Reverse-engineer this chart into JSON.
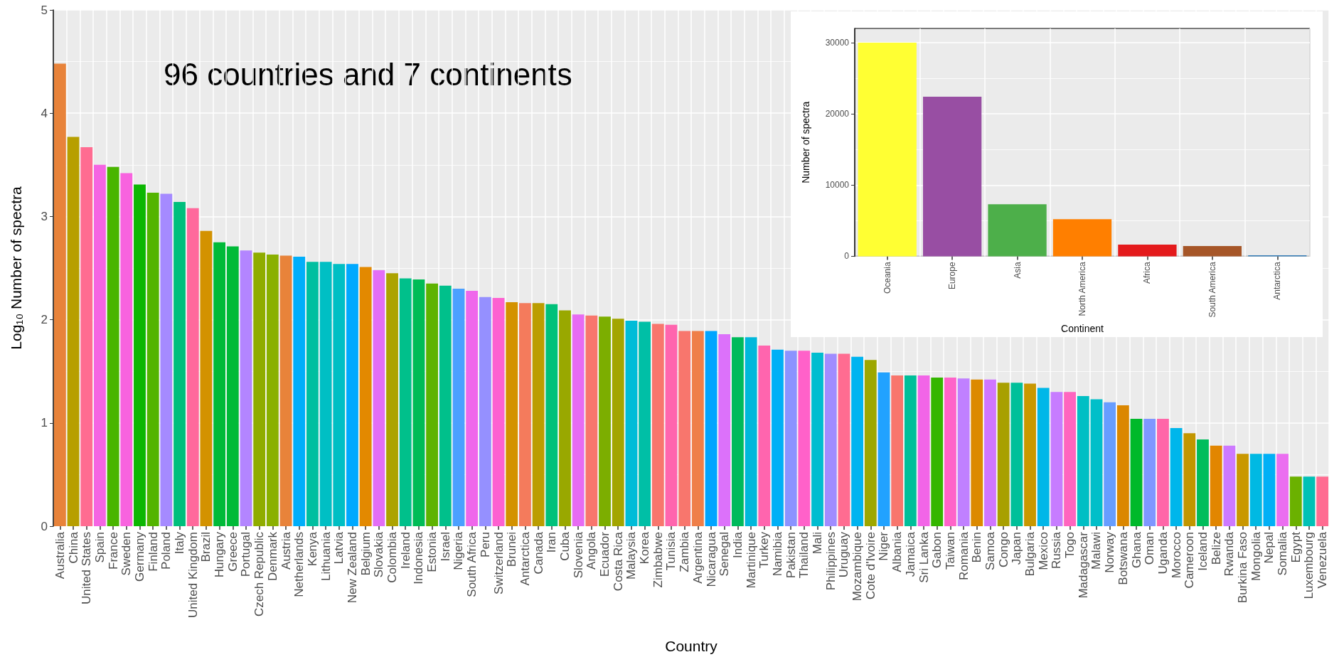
{
  "chart_data": [
    {
      "type": "bar",
      "xlabel": "Country",
      "ylabel": "Log₁₀ Number of spectra",
      "annotations": [
        "96 countries and 7 continents"
      ],
      "categories": [
        "Australia",
        "China",
        "United States",
        "Spain",
        "France",
        "Sweden",
        "Germany",
        "Finland",
        "Poland",
        "Italy",
        "United Kingdom",
        "Brazil",
        "Hungary",
        "Greece",
        "Portugal",
        "Czech Republic",
        "Denmark",
        "Austria",
        "Netherlands",
        "Kenya",
        "Lithuania",
        "Latvia",
        "New Zealand",
        "Belgium",
        "Slovakia",
        "Colombia",
        "Ireland",
        "Indonesia",
        "Estonia",
        "Israel",
        "Nigeria",
        "South Africa",
        "Peru",
        "Switzerland",
        "Brunei",
        "Antarctica",
        "Canada",
        "Iran",
        "Cuba",
        "Slovenia",
        "Angola",
        "Ecuador",
        "Costa Rica",
        "Malaysia",
        "Korea",
        "Zimbabwe",
        "Tunisia",
        "Zambia",
        "Argentina",
        "Nicaragua",
        "Senegal",
        "India",
        "Martinique",
        "Turkey",
        "Namibia",
        "Pakistan",
        "Thailand",
        "Mali",
        "Philippines",
        "Uruguay",
        "Mozambique",
        "Cote d'Ivoire",
        "Niger",
        "Albania",
        "Jamaica",
        "Sri Lanka",
        "Gabon",
        "Taiwan",
        "Romania",
        "Benin",
        "Samoa",
        "Congo",
        "Japan",
        "Bulgaria",
        "Mexico",
        "Russia",
        "Togo",
        "Madagascar",
        "Malawi",
        "Norway",
        "Botswana",
        "Ghana",
        "Oman",
        "Uganda",
        "Morocco",
        "Cameroon",
        "Iceland",
        "Belize",
        "Rwanda",
        "Burkina Faso",
        "Mongolia",
        "Nepal",
        "Somalia",
        "Egypt",
        "Luxembourg",
        "Venezuela"
      ],
      "values": [
        4.48,
        3.77,
        3.67,
        3.5,
        3.48,
        3.42,
        3.31,
        3.23,
        3.22,
        3.14,
        3.08,
        2.86,
        2.75,
        2.71,
        2.67,
        2.65,
        2.63,
        2.62,
        2.61,
        2.56,
        2.56,
        2.54,
        2.54,
        2.51,
        2.48,
        2.45,
        2.4,
        2.39,
        2.35,
        2.33,
        2.3,
        2.28,
        2.22,
        2.21,
        2.17,
        2.16,
        2.16,
        2.15,
        2.09,
        2.05,
        2.04,
        2.03,
        2.01,
        1.99,
        1.98,
        1.96,
        1.95,
        1.89,
        1.89,
        1.89,
        1.86,
        1.83,
        1.83,
        1.75,
        1.71,
        1.7,
        1.7,
        1.68,
        1.67,
        1.67,
        1.64,
        1.61,
        1.49,
        1.46,
        1.46,
        1.46,
        1.44,
        1.44,
        1.43,
        1.42,
        1.42,
        1.39,
        1.39,
        1.38,
        1.34,
        1.3,
        1.3,
        1.26,
        1.23,
        1.2,
        1.17,
        1.04,
        1.04,
        1.04,
        0.95,
        0.9,
        0.84,
        0.78,
        0.78,
        0.7,
        0.7,
        0.7,
        0.7,
        0.48,
        0.48,
        0.48
      ],
      "colors": [
        "#e8833a",
        "#b79f00",
        "#ff6c91",
        "#f564e3",
        "#49b500",
        "#f863df",
        "#0cb702",
        "#53b400",
        "#a58aff",
        "#00bf7d",
        "#ff699c",
        "#d39200",
        "#00ba38",
        "#00ba38",
        "#b385ff",
        "#8fac00",
        "#8ab000",
        "#e8833a",
        "#00aefa",
        "#00bfa0",
        "#00bfc4",
        "#00bfc4",
        "#00a9ff",
        "#e38900",
        "#e36ef6",
        "#aca300",
        "#00c08b",
        "#00bc56",
        "#5eb300",
        "#00c08b",
        "#4ba0ff",
        "#ef67eb",
        "#9590ff",
        "#fd61d1",
        "#d39200",
        "#f47b5c",
        "#bb9d00",
        "#00c17a",
        "#99a800",
        "#e76bf3",
        "#f8766d",
        "#7cae00",
        "#a3a500",
        "#00bcd8",
        "#00bfa6",
        "#f8766d",
        "#ff65ae",
        "#f8766d",
        "#ef7f49",
        "#00a5ff",
        "#dc71fa",
        "#00ba5c",
        "#00b8db",
        "#ff65ae",
        "#00b0f6",
        "#8b93ff",
        "#ff61c9",
        "#00bdd0",
        "#a08cff",
        "#ff6c91",
        "#00b4f0",
        "#9da700",
        "#21a2ff",
        "#f8766d",
        "#00bf9a",
        "#f265e7",
        "#34b600",
        "#ff63c9",
        "#c080ff",
        "#dc8a00",
        "#d076ff",
        "#a8a000",
        "#00c09a",
        "#c99800",
        "#00b7e8",
        "#c77cff",
        "#ff65bf",
        "#00bfc4",
        "#00bfc9",
        "#679dff",
        "#db8700",
        "#00b92a",
        "#7f97ff",
        "#ff66a8",
        "#00b6eb",
        "#c29600",
        "#00bd5c",
        "#e28600",
        "#cd79ff",
        "#c99800",
        "#00b9e3",
        "#00b0f6",
        "#eb6ef0",
        "#6bb100",
        "#00c1b6",
        "#ff6c91"
      ],
      "ylim": [
        0,
        5
      ],
      "yticks": [
        0,
        1,
        2,
        3,
        4,
        5
      ],
      "grid": true
    },
    {
      "type": "bar",
      "xlabel": "Continent",
      "ylabel": "Number of spectra",
      "categories": [
        "Oceania",
        "Europe",
        "Asia",
        "North America",
        "Africa",
        "South America",
        "Antarctica"
      ],
      "values": [
        30000,
        22400,
        7300,
        5200,
        1650,
        1450,
        150
      ],
      "colors": [
        "#ffff33",
        "#984ea3",
        "#4daf4a",
        "#ff7f00",
        "#e41a1c",
        "#a65628",
        "#377eb8"
      ],
      "ylim": [
        0,
        32000
      ],
      "yticks": [
        0,
        10000,
        20000,
        30000
      ],
      "grid": true
    }
  ]
}
